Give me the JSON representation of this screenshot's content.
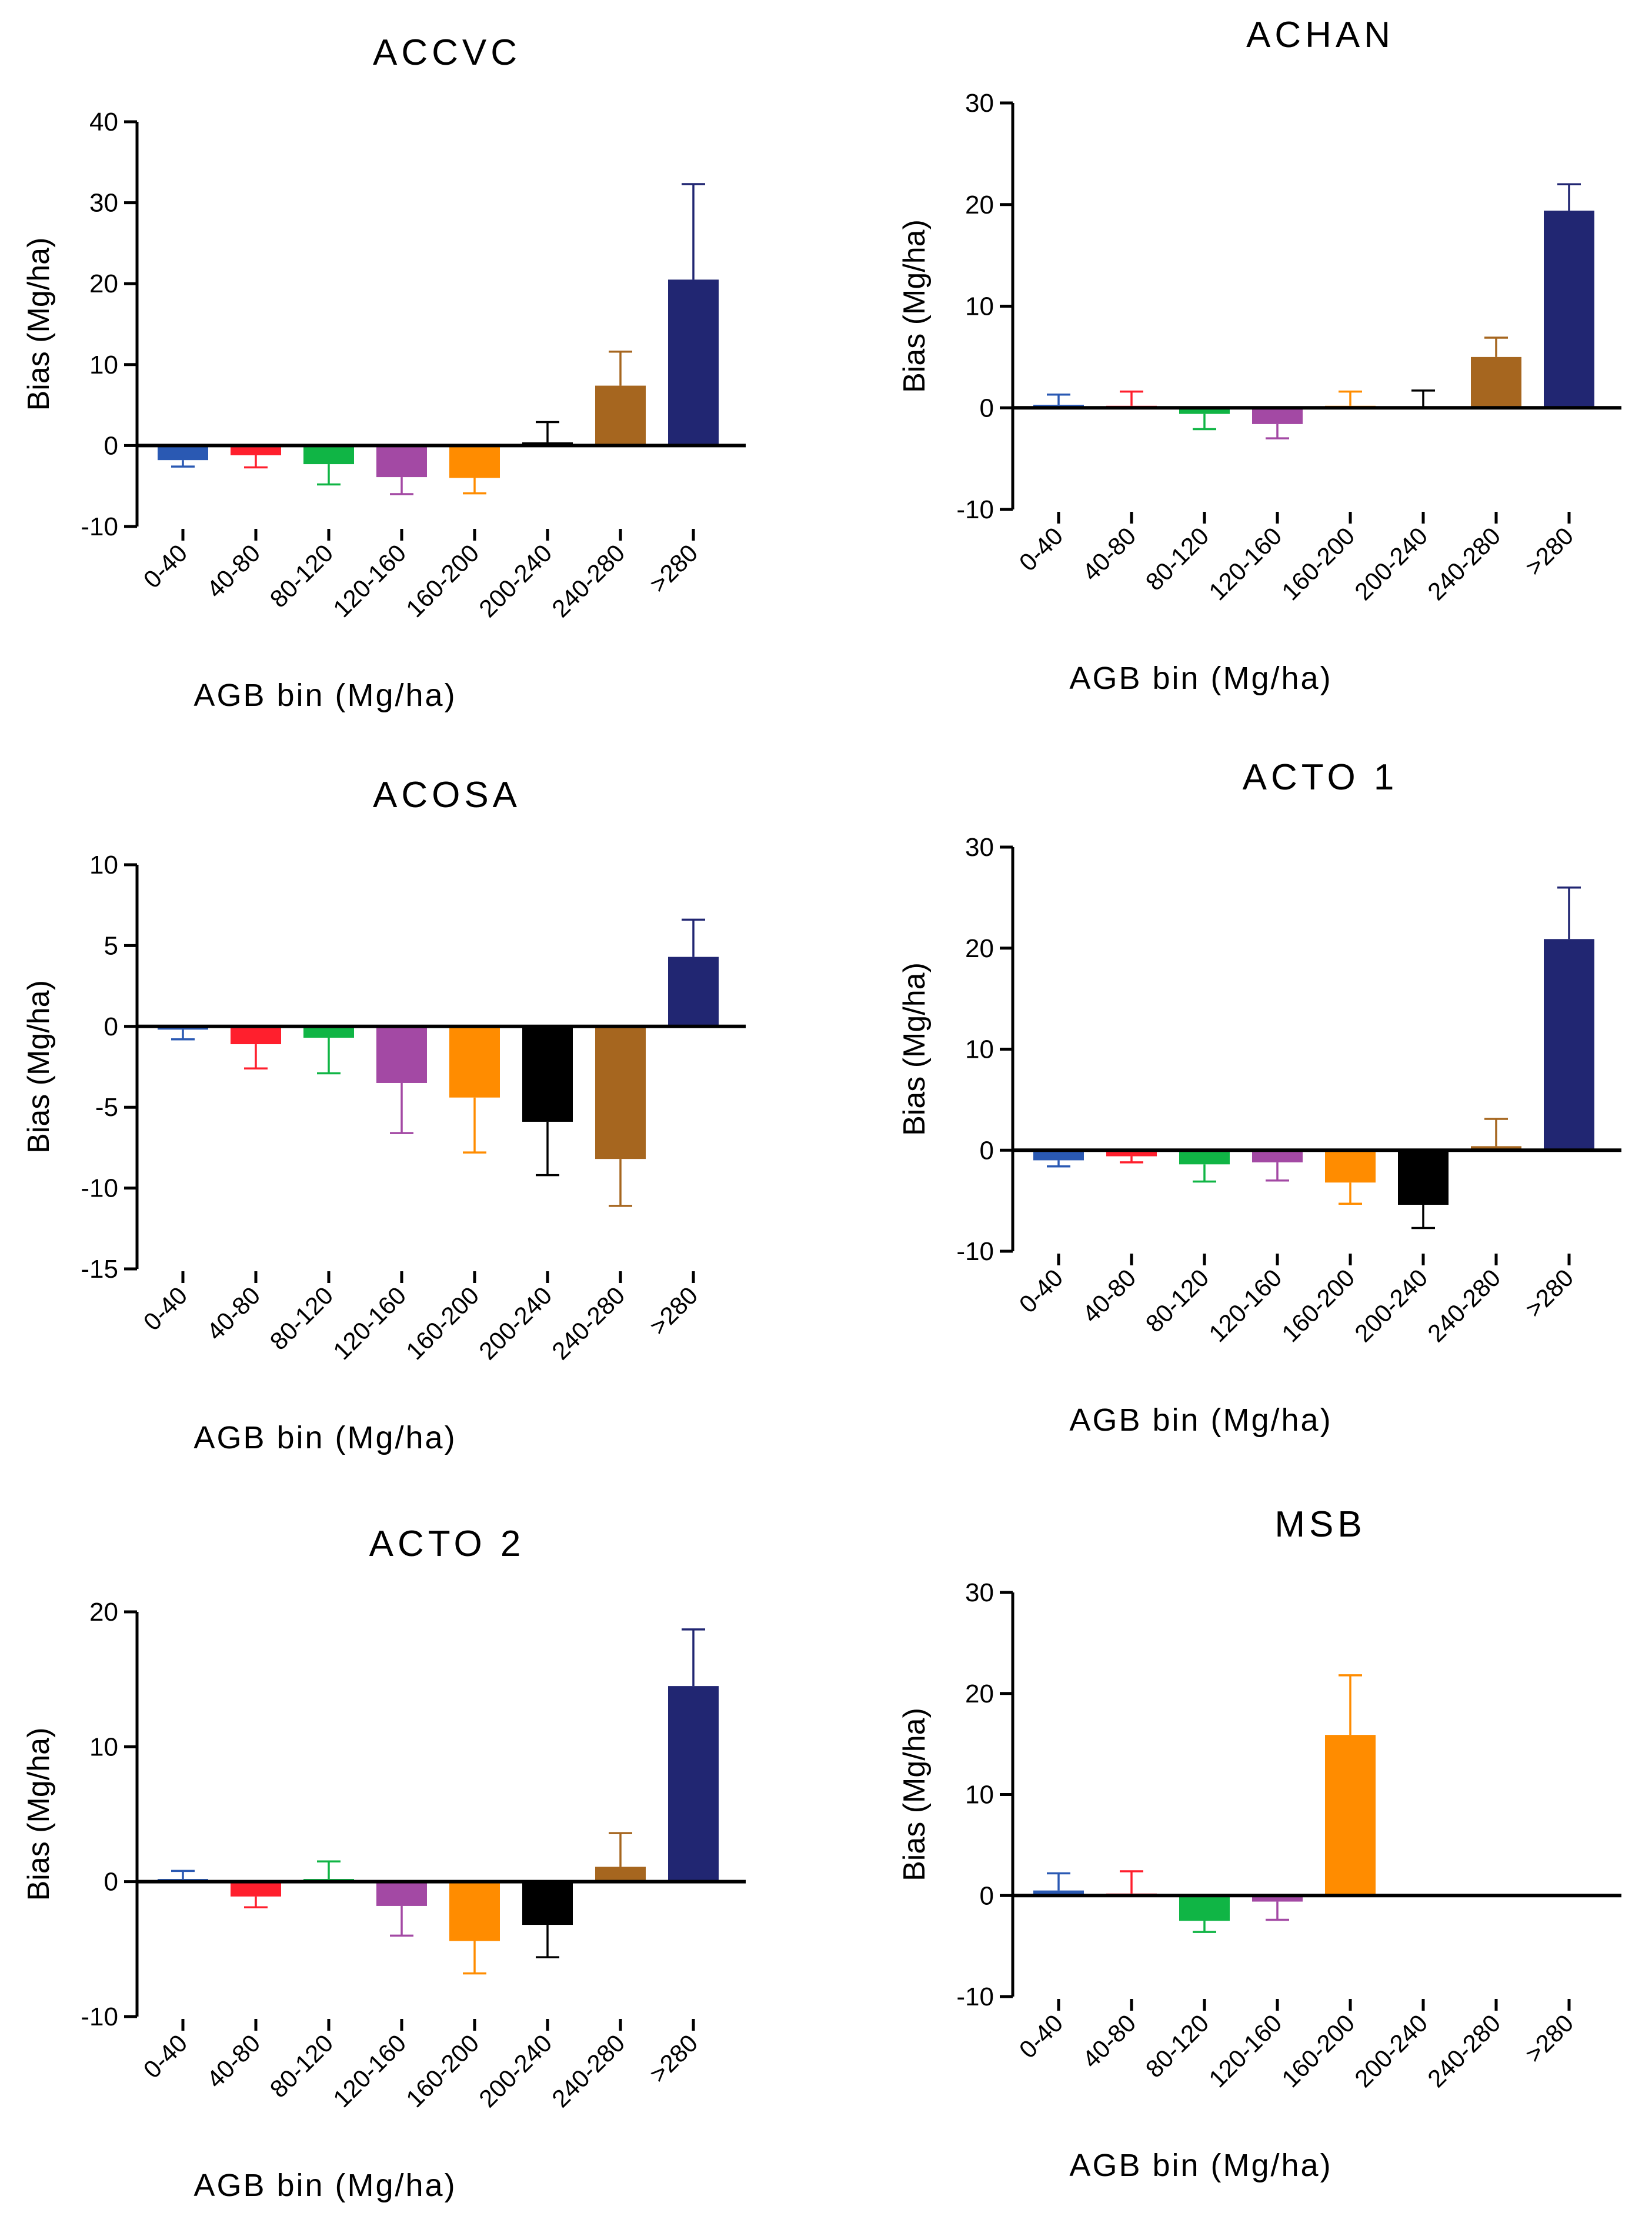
{
  "figure": {
    "description_hidden": false
  },
  "chart_data": [
    {
      "type": "bar",
      "title": "ACCVC",
      "ylabel": "Bias (Mg/ha)",
      "xlabel": "AGB bin (Mg/ha)",
      "ylim": [
        -10,
        40
      ],
      "yticks": [
        -10,
        0,
        10,
        20,
        30,
        40
      ],
      "categories": [
        "0-40",
        "40-80",
        "80-120",
        "120-160",
        "160-200",
        "200-240",
        "240-280",
        ">280"
      ],
      "values": [
        -1.8,
        -1.2,
        -2.3,
        -3.9,
        -4.0,
        0.4,
        7.4,
        20.5
      ],
      "errors": [
        0.8,
        1.5,
        2.5,
        2.1,
        1.9,
        2.5,
        4.2,
        11.8
      ],
      "colors": [
        "#2a59b3",
        "#ff1f2d",
        "#10b545",
        "#a349a4",
        "#ff8c00",
        "#000000",
        "#a6661f",
        "#212672"
      ]
    },
    {
      "type": "bar",
      "title": "ACHAN",
      "ylabel": "Bias (Mg/ha)",
      "xlabel": "AGB bin (Mg/ha)",
      "ylim": [
        -10,
        30
      ],
      "yticks": [
        -10,
        0,
        10,
        20,
        30
      ],
      "categories": [
        "0-40",
        "40-80",
        "80-120",
        "120-160",
        "160-200",
        "200-240",
        "240-280",
        ">280"
      ],
      "values": [
        0.3,
        0.2,
        -0.6,
        -1.6,
        0.2,
        0.1,
        5.0,
        19.4
      ],
      "errors": [
        1.0,
        1.4,
        1.5,
        1.4,
        1.4,
        1.6,
        1.9,
        2.6
      ],
      "colors": [
        "#2a59b3",
        "#ff1f2d",
        "#10b545",
        "#a349a4",
        "#ff8c00",
        "#000000",
        "#a6661f",
        "#212672"
      ]
    },
    {
      "type": "bar",
      "title": "ACOSA",
      "ylabel": "Bias (Mg/ha)",
      "xlabel": "AGB bin (Mg/ha)",
      "ylim": [
        -15,
        10
      ],
      "yticks": [
        -15,
        -10,
        -5,
        0,
        5,
        10
      ],
      "categories": [
        "0-40",
        "40-80",
        "80-120",
        "120-160",
        "160-200",
        "200-240",
        "240-280",
        ">280"
      ],
      "values": [
        -0.2,
        -1.1,
        -0.7,
        -3.5,
        -4.4,
        -5.9,
        -8.2,
        4.3
      ],
      "errors": [
        0.6,
        1.5,
        2.2,
        3.1,
        3.4,
        3.3,
        2.9,
        2.3
      ],
      "colors": [
        "#2a59b3",
        "#ff1f2d",
        "#10b545",
        "#a349a4",
        "#ff8c00",
        "#000000",
        "#a6661f",
        "#212672"
      ]
    },
    {
      "type": "bar",
      "title": "ACTO 1",
      "ylabel": "Bias (Mg/ha)",
      "xlabel": "AGB bin (Mg/ha)",
      "ylim": [
        -10,
        30
      ],
      "yticks": [
        -10,
        0,
        10,
        20,
        30
      ],
      "categories": [
        "0-40",
        "40-80",
        "80-120",
        "120-160",
        "160-200",
        "200-240",
        "240-280",
        ">280"
      ],
      "values": [
        -1.0,
        -0.6,
        -1.4,
        -1.2,
        -3.2,
        -5.4,
        0.4,
        20.9
      ],
      "errors": [
        0.6,
        0.6,
        1.7,
        1.8,
        2.1,
        2.3,
        2.7,
        5.1
      ],
      "colors": [
        "#2a59b3",
        "#ff1f2d",
        "#10b545",
        "#a349a4",
        "#ff8c00",
        "#000000",
        "#a6661f",
        "#212672"
      ]
    },
    {
      "type": "bar",
      "title": "ACTO 2",
      "ylabel": "Bias (Mg/ha)",
      "xlabel": "AGB bin (Mg/ha)",
      "ylim": [
        -10,
        20
      ],
      "yticks": [
        -10,
        0,
        10,
        20
      ],
      "categories": [
        "0-40",
        "40-80",
        "80-120",
        "120-160",
        "160-200",
        "200-240",
        "240-280",
        ">280"
      ],
      "values": [
        0.2,
        -1.1,
        0.2,
        -1.8,
        -4.4,
        -3.2,
        1.1,
        14.5
      ],
      "errors": [
        0.6,
        0.8,
        1.3,
        2.2,
        2.4,
        2.4,
        2.5,
        4.2
      ],
      "colors": [
        "#2a59b3",
        "#ff1f2d",
        "#10b545",
        "#a349a4",
        "#ff8c00",
        "#000000",
        "#a6661f",
        "#212672"
      ]
    },
    {
      "type": "bar",
      "title": "MSB",
      "ylabel": "Bias (Mg/ha)",
      "xlabel": "AGB bin (Mg/ha)",
      "ylim": [
        -10,
        30
      ],
      "yticks": [
        -10,
        0,
        10,
        20,
        30
      ],
      "categories": [
        "0-40",
        "40-80",
        "80-120",
        "120-160",
        "160-200",
        "200-240",
        "240-280",
        ">280"
      ],
      "values": [
        0.5,
        0.2,
        -2.5,
        -0.6,
        15.9,
        null,
        null,
        null
      ],
      "errors": [
        1.7,
        2.2,
        1.1,
        1.8,
        5.9,
        null,
        null,
        null
      ],
      "colors": [
        "#2a59b3",
        "#ff1f2d",
        "#10b545",
        "#a349a4",
        "#ff8c00",
        "#000000",
        "#a6661f",
        "#212672"
      ]
    }
  ]
}
